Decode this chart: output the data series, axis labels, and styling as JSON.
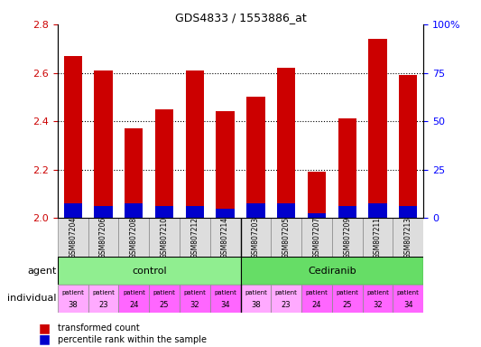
{
  "title": "GDS4833 / 1553886_at",
  "samples": [
    "GSM807204",
    "GSM807206",
    "GSM807208",
    "GSM807210",
    "GSM807212",
    "GSM807214",
    "GSM807203",
    "GSM807205",
    "GSM807207",
    "GSM807209",
    "GSM807211",
    "GSM807213"
  ],
  "red_values": [
    2.67,
    2.61,
    2.37,
    2.45,
    2.61,
    2.44,
    2.5,
    2.62,
    2.19,
    2.41,
    2.74,
    2.59
  ],
  "blue_values": [
    0.06,
    0.05,
    0.06,
    0.05,
    0.05,
    0.04,
    0.06,
    0.06,
    0.02,
    0.05,
    0.06,
    0.05
  ],
  "ylim_left": [
    2.0,
    2.8
  ],
  "ylim_right": [
    0,
    100
  ],
  "yticks_left": [
    2.0,
    2.2,
    2.4,
    2.6,
    2.8
  ],
  "yticks_right": [
    0,
    25,
    50,
    75,
    100
  ],
  "ytick_labels_right": [
    "0",
    "25",
    "50",
    "75",
    "100%"
  ],
  "bar_width": 0.6,
  "agent_groups": [
    {
      "label": "control",
      "start": 0,
      "end": 6,
      "color": "#90EE90"
    },
    {
      "label": "Cediranib",
      "start": 6,
      "end": 12,
      "color": "#66CC66"
    }
  ],
  "patient_labels": [
    "patient\n38",
    "patient\n23",
    "patient\n24",
    "patient\n25",
    "patient\n32",
    "patient\n34",
    "patient\n38",
    "patient\n23",
    "patient\n24",
    "patient\n25",
    "patient\n32",
    "patient\n34"
  ],
  "patient_colors": [
    "#FFAAFF",
    "#FFAAFF",
    "#FF88FF",
    "#FF88FF",
    "#FF88FF",
    "#FF88FF",
    "#FFAAFF",
    "#FFAAFF",
    "#FF88FF",
    "#FF88FF",
    "#FF88FF",
    "#FF88FF"
  ],
  "grid_color": "#000000",
  "red_color": "#CC0000",
  "blue_color": "#0000CC",
  "agent_label": "agent",
  "individual_label": "individual",
  "legend_red": "transformed count",
  "legend_blue": "percentile rank within the sample"
}
